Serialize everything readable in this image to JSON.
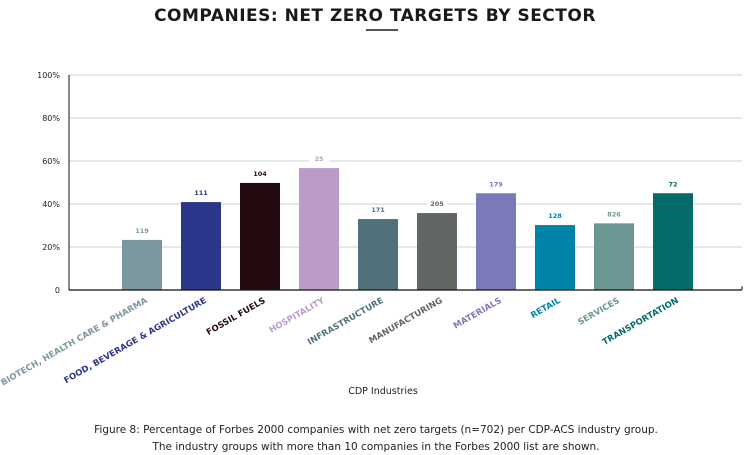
{
  "chart_data": {
    "type": "bar",
    "title": "COMPANIES: NET ZERO TARGETS BY SECTOR",
    "xlabel": "CDP Industries",
    "ylabel": "",
    "ylim": [
      0,
      100
    ],
    "yticks": [
      "0",
      "20%",
      "40%",
      "60%",
      "80%",
      "100%"
    ],
    "grid": true,
    "categories": [
      "BIOTECH, HEALTH CARE & PHARMA",
      "FOOD, BEVERAGE & AGRICULTURE",
      "FOSSIL FUELS",
      "HOSPITALITY",
      "INFRASTRUCTURE",
      "MANUFACTURING",
      "MATERIALS",
      "RETAIL",
      "SERVICES",
      "TRANSPORTATION"
    ],
    "values": [
      23.3,
      40.9,
      49.8,
      56.7,
      33.0,
      35.8,
      45.0,
      30.2,
      31.0,
      45.0
    ],
    "data_labels": [
      "119",
      "111",
      "104",
      "25",
      "171",
      "205",
      "179",
      "128",
      "826",
      "72"
    ],
    "colors": [
      "#7a97a0",
      "#2b368a",
      "#230b0f",
      "#bb9bc9",
      "#4f727a",
      "#626666",
      "#7a7ab8",
      "#0083a9",
      "#6b9694",
      "#046a6a"
    ]
  },
  "caption": {
    "line1": "Figure 8: Percentage of Forbes 2000 companies with net zero targets (n=702) per CDP-ACS industry group.",
    "line2": "The industry groups with more than 10 companies in the Forbes 2000 list are shown."
  }
}
